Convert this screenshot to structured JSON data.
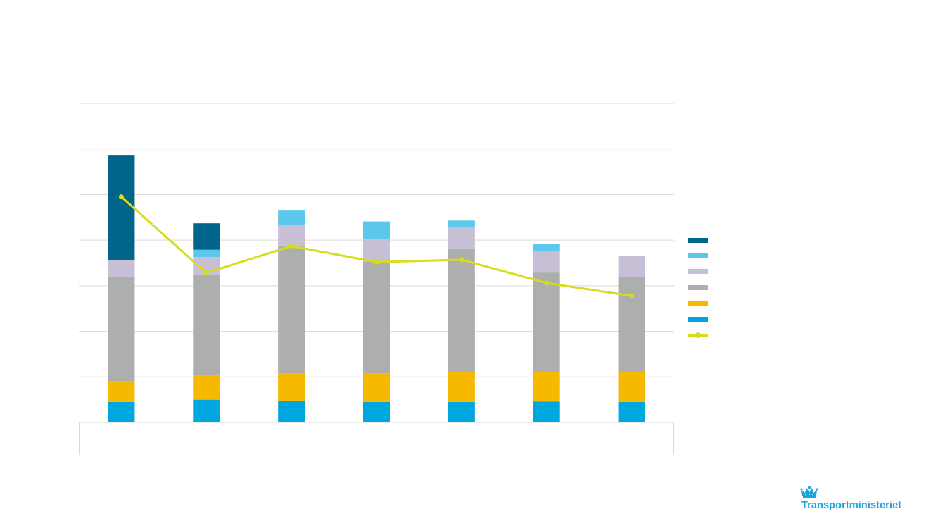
{
  "chart_data": {
    "type": "bar",
    "stacked": true,
    "title": "",
    "xlabel": "",
    "ylabel": "",
    "ylim": [
      0,
      7
    ],
    "grid": true,
    "legend_position": "right",
    "categories": [
      "",
      "",
      "",
      "",
      "",
      "",
      ""
    ],
    "series": [
      {
        "kind": "bar",
        "color": "#00a6de",
        "values": [
          0.45,
          0.5,
          0.48,
          0.45,
          0.45,
          0.46,
          0.45
        ]
      },
      {
        "kind": "bar",
        "color": "#f6b900",
        "values": [
          0.45,
          0.53,
          0.6,
          0.63,
          0.65,
          0.65,
          0.65
        ]
      },
      {
        "kind": "bar",
        "color": "#acafae",
        "values": [
          2.3,
          2.2,
          2.8,
          2.45,
          2.72,
          2.18,
          2.1
        ]
      },
      {
        "kind": "bar",
        "color": "#c7bfd5",
        "values": [
          0.37,
          0.4,
          0.45,
          0.5,
          0.46,
          0.46,
          0.45
        ]
      },
      {
        "kind": "bar",
        "color": "#5bc8eb",
        "values": [
          0,
          0.16,
          0.32,
          0.38,
          0.15,
          0.17,
          0
        ]
      },
      {
        "kind": "bar",
        "color": "#006589",
        "values": [
          2.3,
          0.58,
          0,
          0,
          0,
          0,
          0
        ]
      },
      {
        "kind": "line",
        "color": "#d7dc1b",
        "values": [
          4.95,
          3.28,
          3.87,
          3.52,
          3.57,
          3.06,
          2.78
        ]
      }
    ]
  },
  "legend": {
    "items": [
      {
        "color": "#006589",
        "kind": "bar",
        "label": ""
      },
      {
        "color": "#5bc8eb",
        "kind": "bar",
        "label": ""
      },
      {
        "color": "#c7bfd5",
        "kind": "bar",
        "label": ""
      },
      {
        "color": "#acafae",
        "kind": "bar",
        "label": ""
      },
      {
        "color": "#f6b900",
        "kind": "bar",
        "label": ""
      },
      {
        "color": "#00a6de",
        "kind": "bar",
        "label": ""
      },
      {
        "color": "#d7dc1b",
        "kind": "line",
        "label": ""
      }
    ]
  },
  "logo": {
    "text": "Transportministeriet",
    "color": "#1aa4df"
  }
}
